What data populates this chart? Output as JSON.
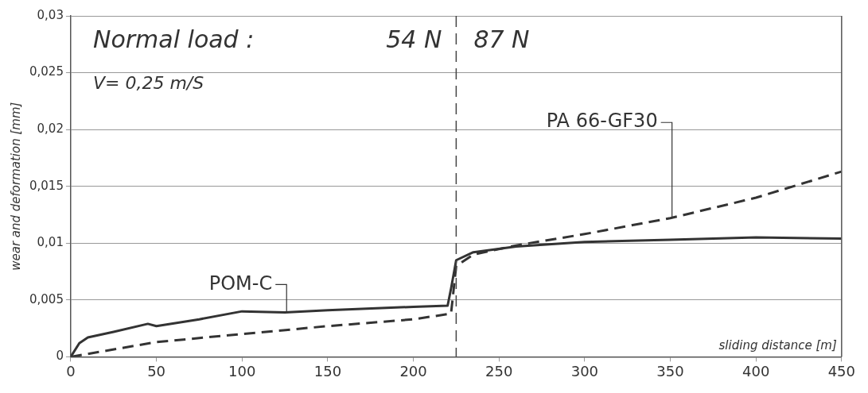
{
  "chart_data": {
    "type": "line",
    "xlabel": "sliding distance [m]",
    "ylabel": "wear and deformation [mm]",
    "annotations": [
      "Normal load :",
      "54 N",
      "87 N",
      "V= 0,25 m/S"
    ],
    "xlim": [
      0,
      450
    ],
    "xticks": [
      0,
      50,
      100,
      150,
      200,
      250,
      300,
      350,
      400,
      450
    ],
    "ylim": [
      0,
      0.03
    ],
    "yticks": [
      {
        "value": 0,
        "label": "0"
      },
      {
        "value": 0.005,
        "label": "0,005"
      },
      {
        "value": 0.01,
        "label": "0,01"
      },
      {
        "value": 0.015,
        "label": "0,015"
      },
      {
        "value": 0.02,
        "label": "0,02"
      },
      {
        "value": 0.025,
        "label": "0,025"
      },
      {
        "value": 0.03,
        "label": "0,03"
      }
    ],
    "grid": "y",
    "marker": "none",
    "ref_lines": [
      {
        "axis": "x",
        "value": 225,
        "line_style": "dashed",
        "color": "#444444"
      }
    ],
    "series": [
      {
        "name": "POM-C",
        "color": "#333333",
        "line_style": "solid",
        "x": [
          0,
          5,
          10,
          25,
          45,
          50,
          75,
          100,
          125,
          150,
          200,
          220,
          222,
          225,
          235,
          260,
          300,
          350,
          400,
          450
        ],
        "values": [
          0,
          0.0012,
          0.0017,
          0.0022,
          0.0029,
          0.0027,
          0.0033,
          0.004,
          0.0039,
          0.0041,
          0.0044,
          0.0045,
          0.006,
          0.0085,
          0.0092,
          0.0097,
          0.0101,
          0.0103,
          0.0105,
          0.0104
        ]
      },
      {
        "name": "PA 66-GF30",
        "color": "#333333",
        "line_style": "dashed",
        "x": [
          0,
          50,
          100,
          150,
          200,
          222,
          225,
          235,
          260,
          300,
          350,
          400,
          450
        ],
        "values": [
          0,
          0.0013,
          0.002,
          0.0027,
          0.0033,
          0.0038,
          0.008,
          0.009,
          0.0098,
          0.0108,
          0.0122,
          0.014,
          0.0163
        ]
      }
    ]
  }
}
